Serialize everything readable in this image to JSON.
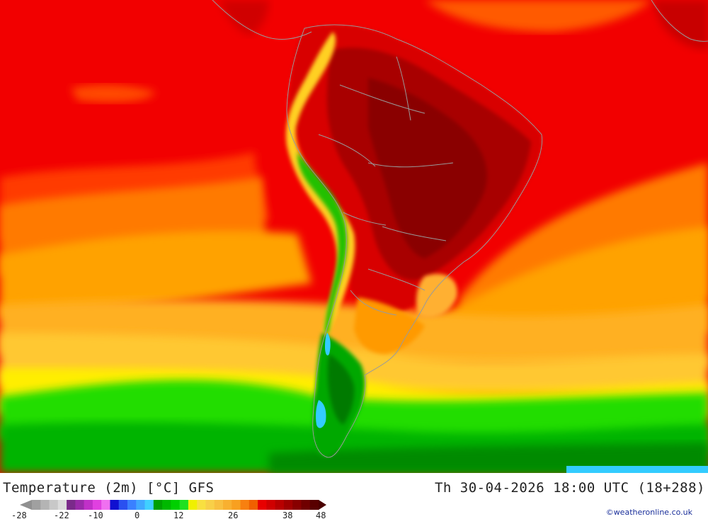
{
  "map": {
    "product": "Temperature (2m) [°C] GFS",
    "valid_time": "Th 30-04-2026 18:00 UTC (18+288)",
    "credit": "©weatheronline.co.uk",
    "region": "South America"
  },
  "legend": {
    "tick_labels": [
      "-28",
      "-22",
      "-10",
      "0",
      "12",
      "26",
      "38",
      "48"
    ],
    "colors": [
      "#a0a0a0",
      "#b4b4b4",
      "#c8c8c8",
      "#dcdcdc",
      "#7a2a8a",
      "#9a2aaa",
      "#c030c8",
      "#e040e0",
      "#f070f0",
      "#1010d0",
      "#2a50f0",
      "#3a80ff",
      "#40a8ff",
      "#40d0ff",
      "#00a000",
      "#00b800",
      "#00d000",
      "#20e020",
      "#f0f000",
      "#f8e040",
      "#f8d048",
      "#f8c040",
      "#f8b030",
      "#f8a020",
      "#f88010",
      "#f06000",
      "#e80000",
      "#d00000",
      "#b80000",
      "#a00000",
      "#880000",
      "#700000",
      "#580000"
    ]
  },
  "palette": {
    "deep_red": "#a30000",
    "red": "#e60000",
    "red_orange": "#ff3300",
    "orange": "#ff8800",
    "amber": "#ffaa00",
    "yellow_orange": "#ffcc33",
    "yellow": "#ffee00",
    "green_light": "#22dd00",
    "green": "#00b000",
    "green_dark": "#007700",
    "cyan": "#33ccff",
    "border": "#9a9a9a"
  }
}
